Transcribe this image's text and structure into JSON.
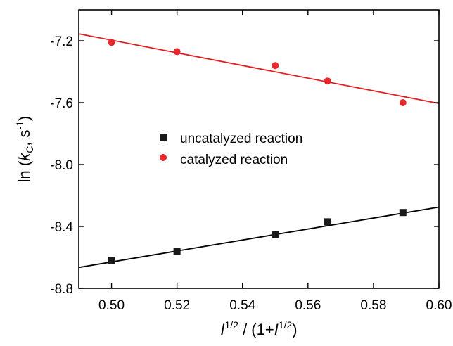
{
  "chart_data": {
    "type": "scatter",
    "xlim": [
      0.49,
      0.6
    ],
    "ylim": [
      -8.8,
      -7.0
    ],
    "x_ticks": [
      0.5,
      0.52,
      0.54,
      0.56,
      0.58,
      0.6
    ],
    "x_tick_labels": [
      "0.50",
      "0.52",
      "0.54",
      "0.56",
      "0.58",
      "0.60"
    ],
    "y_ticks": [
      -7.2,
      -7.6,
      -8.0,
      -8.4,
      -8.8
    ],
    "y_tick_labels": [
      "-7.2",
      "-7.6",
      "-8.0",
      "-8.4",
      "-8.8"
    ],
    "xlabel": {
      "I": "I",
      "sup1": "1/2",
      "middle": " / (1+",
      "I2": "I",
      "sup2": "1/2",
      "end": ")"
    },
    "ylabel": {
      "prefix": "ln (",
      "k": "k",
      "sub": "C",
      "middle": ", s",
      "sup": "-1",
      "end": ")"
    },
    "grid": false,
    "legend_position": "center",
    "series": [
      {
        "name": "uncatalyzed reaction",
        "marker": "square",
        "color": "#1a1a1a",
        "x": [
          0.5,
          0.52,
          0.55,
          0.566,
          0.589
        ],
        "y": [
          -8.62,
          -8.56,
          -8.45,
          -8.37,
          -8.31
        ],
        "fit": {
          "x": [
            0.49,
            0.6
          ],
          "y": [
            -8.665,
            -8.275
          ]
        }
      },
      {
        "name": "catalyzed reaction",
        "marker": "circle",
        "color": "#e8282b",
        "x": [
          0.5,
          0.52,
          0.55,
          0.566,
          0.589
        ],
        "y": [
          -7.21,
          -7.27,
          -7.36,
          -7.46,
          -7.6
        ],
        "fit": {
          "x": [
            0.49,
            0.6
          ],
          "y": [
            -7.155,
            -7.605
          ]
        }
      }
    ]
  }
}
